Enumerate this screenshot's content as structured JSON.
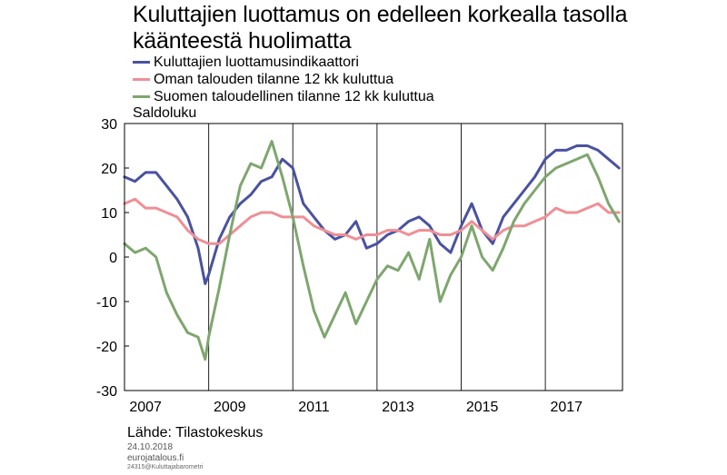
{
  "title_line1": "Kuluttajien luottamus on edelleen korkealla tasolla",
  "title_line2": "käänteestä huolimatta",
  "unit_label": "Saldoluku",
  "source": "Lähde: Tilastokeskus",
  "date": "24.10.2018",
  "site": "eurojatalous.fi",
  "file_id": "24315@Kuluttajabarometri",
  "colors": {
    "series1": "#4a52a0",
    "series2": "#ef8f95",
    "series3": "#7ea66e"
  },
  "chart_data": {
    "type": "line",
    "title": "Kuluttajien luottamus on edelleen korkealla tasolla käänteestä huolimatta",
    "ylabel": "Saldoluku",
    "ylim": [
      -30,
      30
    ],
    "yticks": [
      30,
      20,
      10,
      0,
      -10,
      -20,
      -30
    ],
    "xlim": [
      2007.0,
      2018.833
    ],
    "xtick_labels": [
      "2007",
      "2009",
      "2011",
      "2013",
      "2015",
      "2017"
    ],
    "grid": "vertical lines at odd years",
    "legend_position": "top-left",
    "series": [
      {
        "name": "Kuluttajien luottamusindikaattori",
        "color": "#4a52a0",
        "x": [
          2007.0,
          2007.25,
          2007.5,
          2007.75,
          2008.0,
          2008.25,
          2008.5,
          2008.75,
          2008.917,
          2009.0,
          2009.25,
          2009.5,
          2009.75,
          2010.0,
          2010.25,
          2010.5,
          2010.75,
          2011.0,
          2011.25,
          2011.5,
          2011.75,
          2012.0,
          2012.25,
          2012.5,
          2012.75,
          2013.0,
          2013.25,
          2013.5,
          2013.75,
          2014.0,
          2014.25,
          2014.5,
          2014.75,
          2015.0,
          2015.25,
          2015.5,
          2015.75,
          2016.0,
          2016.25,
          2016.5,
          2016.75,
          2017.0,
          2017.25,
          2017.5,
          2017.75,
          2018.0,
          2018.25,
          2018.5,
          2018.75
        ],
        "values": [
          18,
          17,
          19,
          19,
          16,
          13,
          9,
          2,
          -6,
          -4,
          4,
          9,
          12,
          14,
          17,
          18,
          22,
          20,
          12,
          9,
          6,
          4,
          5,
          8,
          2,
          3,
          5,
          6,
          8,
          9,
          7,
          3,
          1,
          7,
          12,
          6,
          3,
          9,
          12,
          15,
          18,
          22,
          24,
          24,
          25,
          25,
          24,
          22,
          20
        ]
      },
      {
        "name": "Oman talouden tilanne 12 kk kuluttua",
        "color": "#ef8f95",
        "x": [
          2007.0,
          2007.25,
          2007.5,
          2007.75,
          2008.0,
          2008.25,
          2008.5,
          2008.75,
          2009.0,
          2009.25,
          2009.5,
          2009.75,
          2010.0,
          2010.25,
          2010.5,
          2010.75,
          2011.0,
          2011.25,
          2011.5,
          2011.75,
          2012.0,
          2012.25,
          2012.5,
          2012.75,
          2013.0,
          2013.25,
          2013.5,
          2013.75,
          2014.0,
          2014.25,
          2014.5,
          2014.75,
          2015.0,
          2015.25,
          2015.5,
          2015.75,
          2016.0,
          2016.25,
          2016.5,
          2016.75,
          2017.0,
          2017.25,
          2017.5,
          2017.75,
          2018.0,
          2018.25,
          2018.5,
          2018.75
        ],
        "values": [
          12,
          13,
          11,
          11,
          10,
          9,
          6,
          4,
          3,
          3,
          5,
          7,
          9,
          10,
          10,
          9,
          9,
          9,
          7,
          6,
          5,
          5,
          4,
          5,
          5,
          6,
          6,
          5,
          6,
          6,
          5,
          5,
          6,
          8,
          6,
          4,
          6,
          7,
          7,
          8,
          9,
          11,
          10,
          10,
          11,
          12,
          10,
          10
        ]
      },
      {
        "name": "Suomen taloudellinen tilanne 12 kk kuluttua",
        "color": "#7ea66e",
        "x": [
          2007.0,
          2007.25,
          2007.5,
          2007.75,
          2008.0,
          2008.25,
          2008.5,
          2008.75,
          2008.917,
          2009.0,
          2009.25,
          2009.5,
          2009.75,
          2010.0,
          2010.25,
          2010.5,
          2010.75,
          2011.0,
          2011.25,
          2011.5,
          2011.75,
          2012.0,
          2012.25,
          2012.5,
          2012.75,
          2013.0,
          2013.25,
          2013.5,
          2013.75,
          2014.0,
          2014.25,
          2014.5,
          2014.75,
          2015.0,
          2015.25,
          2015.5,
          2015.75,
          2016.0,
          2016.25,
          2016.5,
          2016.75,
          2017.0,
          2017.25,
          2017.5,
          2017.75,
          2018.0,
          2018.25,
          2018.5,
          2018.75
        ],
        "values": [
          3,
          1,
          2,
          0,
          -8,
          -13,
          -17,
          -18,
          -23,
          -18,
          -7,
          5,
          16,
          21,
          20,
          26,
          18,
          9,
          -2,
          -12,
          -18,
          -13,
          -8,
          -15,
          -10,
          -5,
          -2,
          -3,
          1,
          -5,
          4,
          -10,
          -4,
          0,
          7,
          0,
          -3,
          2,
          8,
          12,
          15,
          18,
          20,
          21,
          22,
          23,
          18,
          12,
          8
        ]
      }
    ]
  }
}
